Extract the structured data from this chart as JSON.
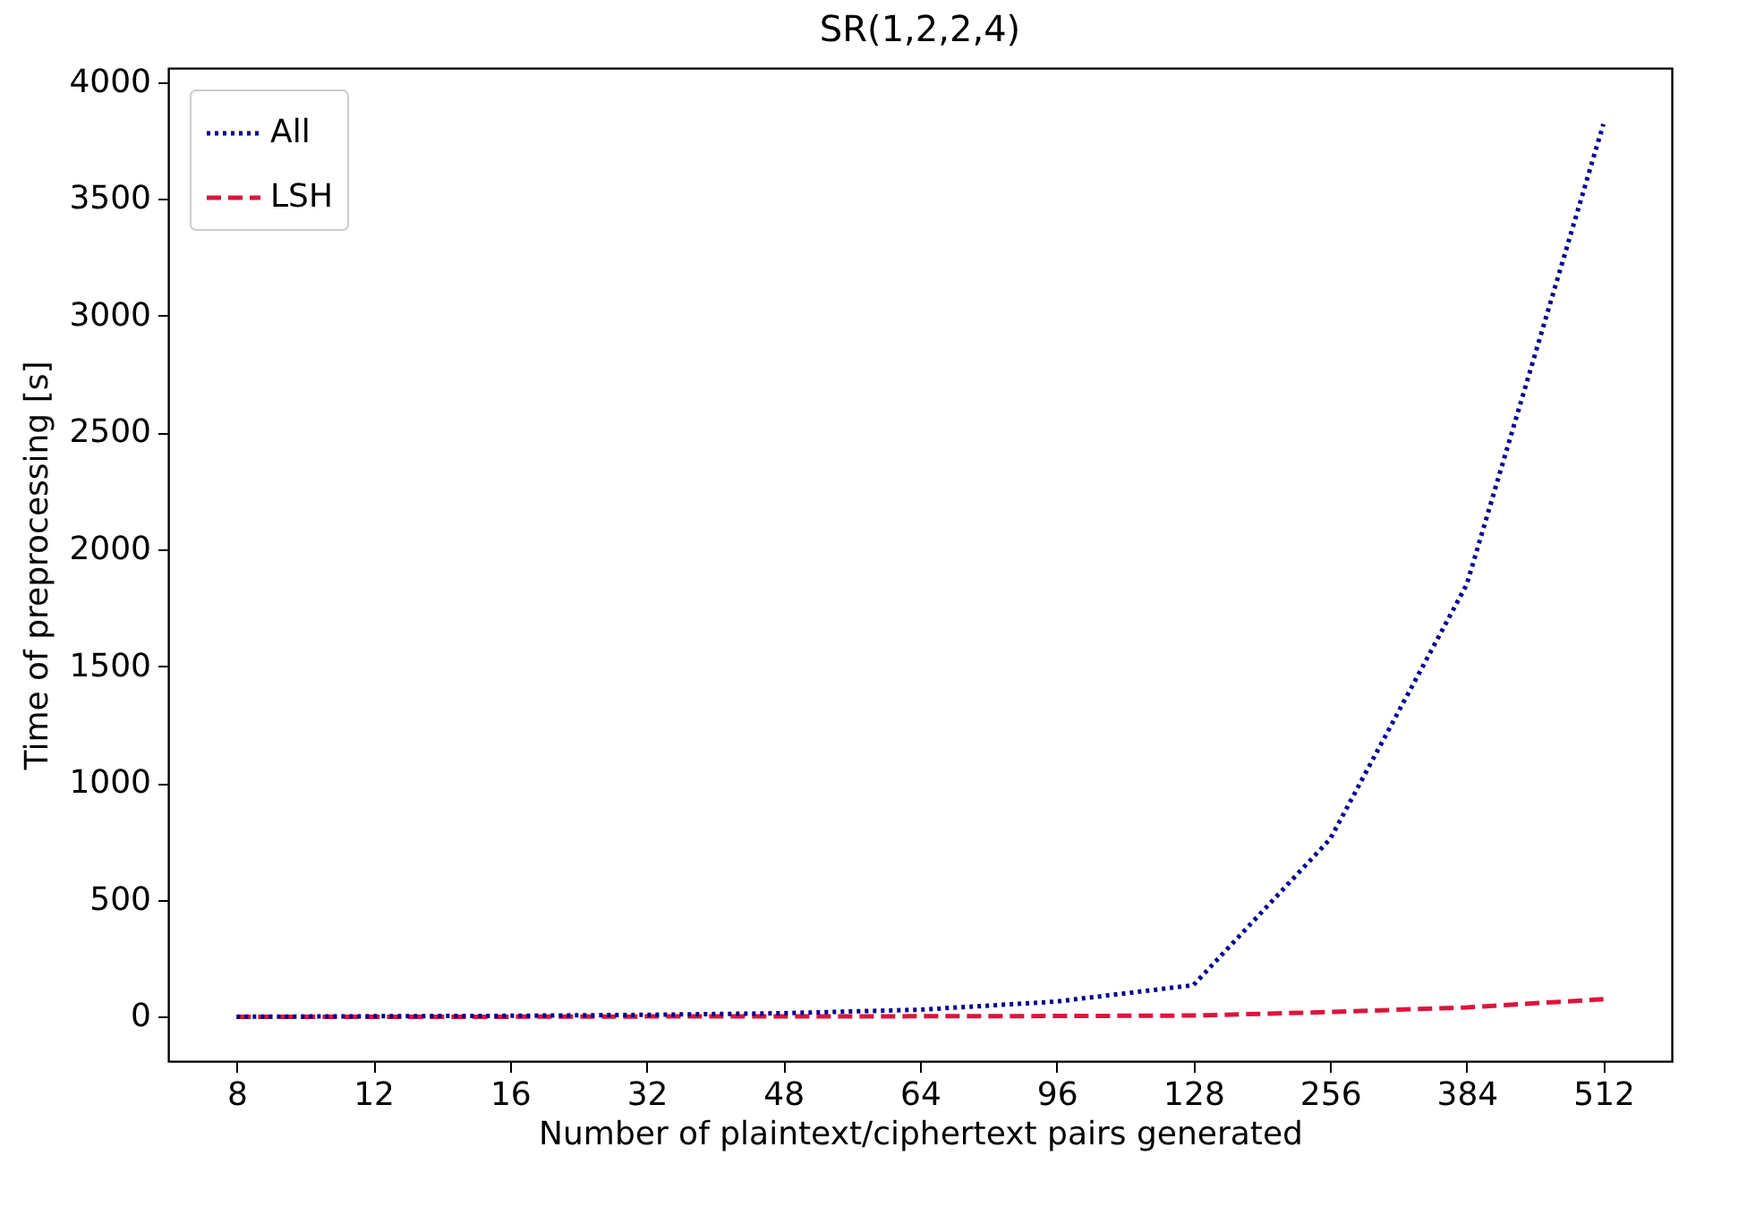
{
  "chart_data": {
    "type": "line",
    "title": "SR(1,2,2,4)",
    "xlabel": "Number of plaintext/ciphertext pairs generated",
    "ylabel": "Time of preprocessing [s]",
    "categories": [
      "8",
      "12",
      "16",
      "32",
      "48",
      "64",
      "96",
      "128",
      "256",
      "384",
      "512"
    ],
    "series": [
      {
        "name": "All",
        "color": "#00008b",
        "line_style": "dotted",
        "values": [
          0,
          2,
          4,
          8,
          15,
          30,
          65,
          135,
          760,
          1850,
          3820
        ]
      },
      {
        "name": "LSH",
        "color": "#dc143c",
        "line_style": "dashed",
        "values": [
          0,
          0,
          0,
          1,
          1,
          2,
          3,
          5,
          20,
          40,
          75
        ]
      }
    ],
    "ylim": [
      -190,
      4060
    ],
    "yticks": [
      0,
      500,
      1000,
      1500,
      2000,
      2500,
      3000,
      3500,
      4000
    ],
    "grid": false,
    "legend": "top left",
    "marker": "none"
  }
}
